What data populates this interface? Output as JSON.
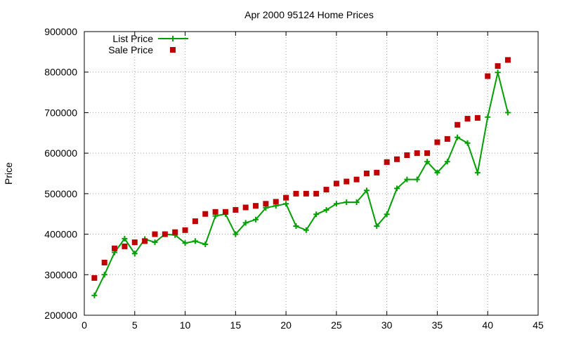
{
  "chart_data": {
    "type": "line",
    "title": "Apr 2000 95124 Home Prices",
    "xlabel": "",
    "ylabel": "Price",
    "xlim": [
      0,
      45
    ],
    "ylim": [
      200000,
      900000
    ],
    "xticks": [
      0,
      5,
      10,
      15,
      20,
      25,
      30,
      35,
      40,
      45
    ],
    "yticks": [
      200000,
      300000,
      400000,
      500000,
      600000,
      700000,
      800000,
      900000
    ],
    "grid": true,
    "legend_position": "top-left",
    "series": [
      {
        "name": "List Price",
        "style": "line+cross",
        "color": "#00a000",
        "x": [
          1,
          2,
          3,
          4,
          5,
          6,
          7,
          8,
          9,
          10,
          11,
          12,
          13,
          14,
          15,
          16,
          17,
          18,
          19,
          20,
          21,
          22,
          23,
          24,
          25,
          26,
          27,
          28,
          29,
          30,
          31,
          32,
          33,
          34,
          35,
          36,
          37,
          38,
          39,
          40,
          41,
          42
        ],
        "y": [
          249000,
          300000,
          355000,
          389000,
          352000,
          388000,
          380000,
          400000,
          398000,
          378000,
          383000,
          375000,
          445000,
          450000,
          400000,
          428000,
          436000,
          465000,
          470000,
          475000,
          420000,
          410000,
          449000,
          460000,
          475000,
          479000,
          479000,
          508000,
          420000,
          449000,
          513000,
          535000,
          535000,
          579000,
          552000,
          579000,
          639000,
          625000,
          552000,
          689000,
          799000,
          700000
        ]
      },
      {
        "name": "Sale Price",
        "style": "square",
        "color": "#c00000",
        "x": [
          1,
          2,
          3,
          4,
          5,
          6,
          7,
          8,
          9,
          10,
          11,
          12,
          13,
          14,
          15,
          16,
          17,
          18,
          19,
          20,
          21,
          22,
          23,
          24,
          25,
          26,
          27,
          28,
          29,
          30,
          31,
          32,
          33,
          34,
          35,
          36,
          37,
          38,
          39,
          40,
          41,
          42
        ],
        "y": [
          292000,
          330000,
          365000,
          370000,
          380000,
          383000,
          400000,
          400000,
          405000,
          410000,
          432000,
          450000,
          455000,
          455000,
          460000,
          466000,
          470000,
          475000,
          480000,
          490000,
          500000,
          500000,
          500000,
          510000,
          525000,
          530000,
          535000,
          550000,
          552000,
          578000,
          585000,
          595000,
          600000,
          600000,
          627000,
          635000,
          670000,
          685000,
          687000,
          790000,
          815000,
          830000
        ]
      }
    ]
  }
}
